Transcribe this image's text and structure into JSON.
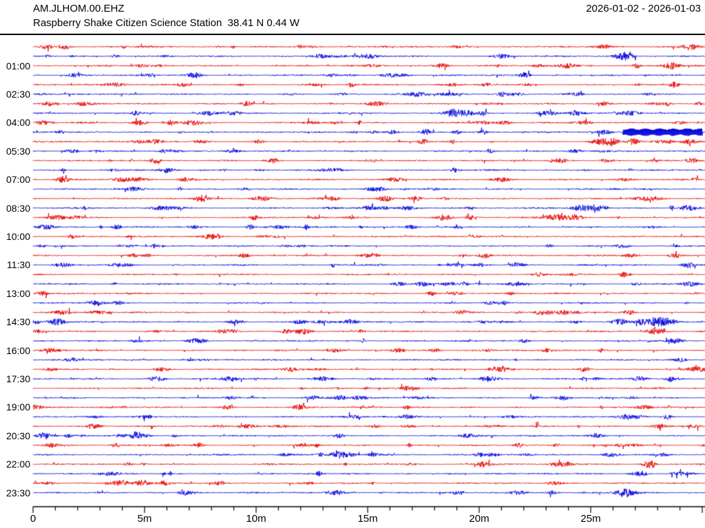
{
  "header": {
    "station": "AM.JLHOM.00.EHZ",
    "date_range": "2026-01-02 - 2026-01-03",
    "subtitle": "Raspberry Shake Citizen Science Station  38.41 N 0.44 W"
  },
  "chart_data": {
    "type": "helicorder",
    "title": "AM.JLHOM.00.EHZ",
    "subtitle": "Raspberry Shake Citizen Science Station  38.41 N 0.44 W",
    "date_range": "2026-01-02 - 2026-01-03",
    "minutes_per_line": 30,
    "num_lines": 48,
    "x_axis": {
      "major_tick_labels": [
        "0",
        "5m",
        "10m",
        "15m",
        "20m",
        "25m"
      ],
      "major_tick_minutes": [
        0,
        5,
        10,
        15,
        20,
        25
      ],
      "minor_tick_every_minutes": 1,
      "range_minutes": [
        0,
        30
      ]
    },
    "y_axis": {
      "tick_labels": [
        "01:00",
        "02:30",
        "04:00",
        "05:30",
        "07:00",
        "08:30",
        "10:00",
        "11:30",
        "13:00",
        "14:30",
        "16:00",
        "17:30",
        "19:00",
        "20:30",
        "22:00",
        "23:30"
      ],
      "label_interval": "1:30",
      "first_label_line_index": 2,
      "label_every_n_lines": 3
    },
    "line_start_times": [
      "00:00",
      "00:30",
      "01:00",
      "01:30",
      "02:00",
      "02:30",
      "03:00",
      "03:30",
      "04:00",
      "04:30",
      "05:00",
      "05:30",
      "06:00",
      "06:30",
      "07:00",
      "07:30",
      "08:00",
      "08:30",
      "09:00",
      "09:30",
      "10:00",
      "10:30",
      "11:00",
      "11:30",
      "12:00",
      "12:30",
      "13:00",
      "13:30",
      "14:00",
      "14:30",
      "15:00",
      "15:30",
      "16:00",
      "16:30",
      "17:00",
      "17:30",
      "18:00",
      "18:30",
      "19:00",
      "19:30",
      "20:00",
      "20:30",
      "21:00",
      "21:30",
      "22:00",
      "22:30",
      "23:00",
      "23:30"
    ],
    "line_color_pattern": [
      "red",
      "blue"
    ],
    "colors": {
      "red": "#e60000",
      "blue": "#0000dd",
      "axis": "#000000",
      "text": "#000000",
      "background": "#ffffff"
    },
    "events": [
      {
        "row": 0,
        "type": "burst",
        "min": 0.6,
        "w": 0.3,
        "amp": 3.2
      },
      {
        "row": 0,
        "type": "burst",
        "min": 1.4,
        "w": 0.25,
        "amp": 3.8
      },
      {
        "row": 2,
        "type": "burst",
        "min": 28.6,
        "w": 0.4,
        "amp": 3.8
      },
      {
        "row": 3,
        "type": "burst",
        "min": 7.2,
        "w": 0.3,
        "amp": 3.5
      },
      {
        "row": 8,
        "type": "burst",
        "min": 4.8,
        "w": 0.3,
        "amp": 4.0
      },
      {
        "row": 8,
        "type": "burst",
        "min": 6.2,
        "w": 0.22,
        "amp": 3.5
      },
      {
        "row": 9,
        "type": "burst",
        "min": 17.6,
        "w": 0.25,
        "amp": 3.2
      },
      {
        "row": 9,
        "type": "burst",
        "min": 19.0,
        "w": 0.2,
        "amp": 2.8
      },
      {
        "row": 9,
        "type": "burst",
        "min": 25.6,
        "w": 0.3,
        "amp": 3.0
      },
      {
        "row": 9,
        "type": "clip",
        "min": 26.45,
        "end_min": 30.0,
        "amp": 4.6
      },
      {
        "row": 10,
        "type": "burst",
        "min": 25.95,
        "w": 0.35,
        "amp": 5.0
      },
      {
        "row": 10,
        "type": "burst",
        "min": 26.9,
        "w": 0.25,
        "amp": 4.5
      },
      {
        "row": 16,
        "type": "burst",
        "min": 27.6,
        "w": 0.7,
        "amp": 3.0
      },
      {
        "row": 17,
        "type": "burst",
        "min": 24.6,
        "w": 0.45,
        "amp": 4.5
      },
      {
        "row": 17,
        "type": "burst",
        "min": 25.4,
        "w": 0.35,
        "amp": 4.0
      },
      {
        "row": 17,
        "type": "burst",
        "min": 29.4,
        "w": 0.4,
        "amp": 4.2
      },
      {
        "row": 18,
        "type": "burst",
        "min": 23.4,
        "w": 0.5,
        "amp": 4.0
      },
      {
        "row": 18,
        "type": "burst",
        "min": 24.3,
        "w": 0.4,
        "amp": 3.5
      },
      {
        "row": 28,
        "type": "burst",
        "min": 23.0,
        "w": 0.4,
        "amp": 3.3
      },
      {
        "row": 28,
        "type": "burst",
        "min": 23.8,
        "w": 0.3,
        "amp": 3.0
      },
      {
        "row": 29,
        "type": "burst",
        "min": 1.1,
        "w": 0.35,
        "amp": 4.5
      },
      {
        "row": 29,
        "type": "burst",
        "min": 14.2,
        "w": 0.4,
        "amp": 3.6
      },
      {
        "row": 29,
        "type": "burst",
        "min": 26.3,
        "w": 0.35,
        "amp": 4.2
      },
      {
        "row": 29,
        "type": "burst",
        "min": 27.3,
        "w": 0.4,
        "amp": 4.2
      },
      {
        "row": 29,
        "type": "burst",
        "min": 28.2,
        "w": 0.3,
        "amp": 3.8
      },
      {
        "row": 30,
        "type": "burst",
        "min": 27.9,
        "w": 0.4,
        "amp": 4.5
      },
      {
        "row": 35,
        "type": "burst",
        "min": 5.6,
        "w": 0.35,
        "amp": 3.5
      },
      {
        "row": 35,
        "type": "burst",
        "min": 8.8,
        "w": 0.45,
        "amp": 3.0
      },
      {
        "row": 38,
        "type": "burst",
        "min": 12.0,
        "w": 0.3,
        "amp": 3.6
      },
      {
        "row": 39,
        "type": "burst",
        "min": 26.8,
        "w": 0.5,
        "amp": 4.0
      },
      {
        "row": 41,
        "type": "burst",
        "min": 0.5,
        "w": 0.3,
        "amp": 3.4
      },
      {
        "row": 44,
        "type": "burst",
        "min": 20.2,
        "w": 0.35,
        "amp": 3.4
      },
      {
        "row": 45,
        "type": "burst",
        "min": 27.2,
        "w": 0.35,
        "amp": 3.8
      },
      {
        "row": 46,
        "type": "burst",
        "min": 4.0,
        "w": 0.3,
        "amp": 3.8
      },
      {
        "row": 46,
        "type": "burst",
        "min": 4.9,
        "w": 0.3,
        "amp": 4.2
      },
      {
        "row": 46,
        "type": "burst",
        "min": 5.9,
        "w": 0.25,
        "amp": 3.6
      },
      {
        "row": 47,
        "type": "burst",
        "min": 26.5,
        "w": 0.45,
        "amp": 3.2
      }
    ]
  }
}
